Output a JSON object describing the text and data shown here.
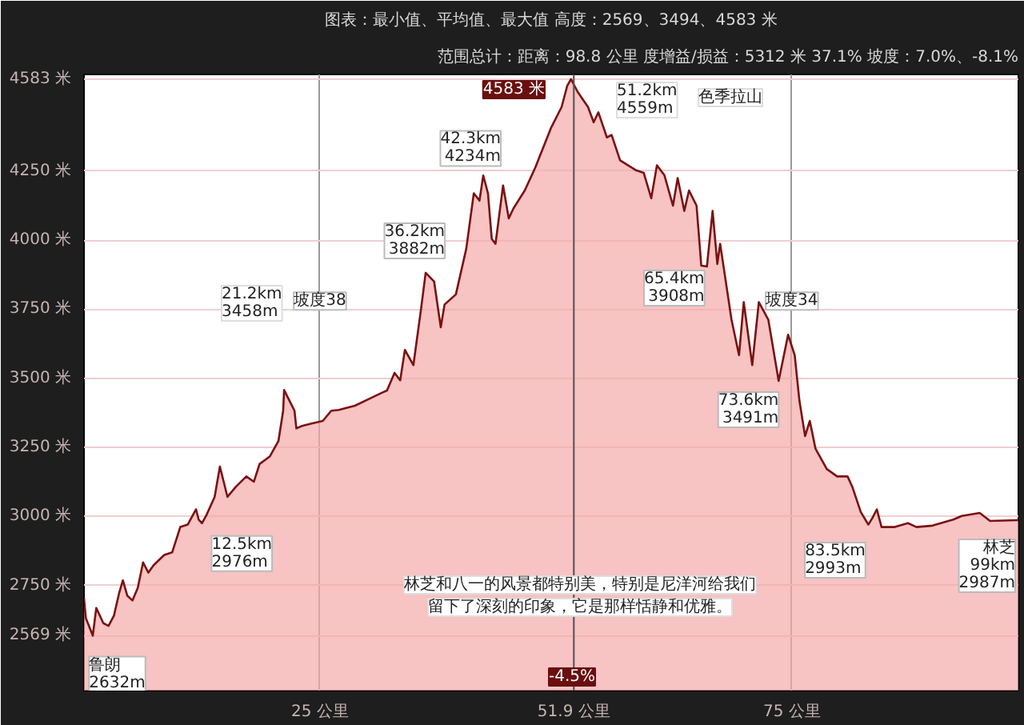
{
  "chart_data": {
    "type": "area",
    "title": "图表：最小值、平均值、最大值 高度：2569、3494、4583 米",
    "subtitle": "范围总计：距离：98.8 公里 度增益/损益：5312 米 37.1% 坡度：7.0%、-8.1%",
    "x": [
      0,
      0.2,
      0.93,
      1.3,
      2.05,
      2.6,
      3.17,
      3.73,
      4.12,
      4.58,
      5.13,
      5.7,
      6.26,
      6.82,
      7.38,
      8.5,
      9.34,
      10.2,
      11.0,
      11.87,
      12.15,
      12.5,
      13.0,
      13.84,
      14.4,
      15.2,
      16.1,
      17.2,
      18.0,
      18.6,
      19.7,
      20.6,
      21.1,
      21.2,
      22.3,
      22.5,
      23.1,
      24.2,
      25.3,
      26.2,
      27.0,
      28.7,
      30.4,
      31.5,
      32.1,
      32.9,
      33.5,
      34.0,
      34.9,
      35.7,
      36.2,
      37.1,
      37.8,
      38.2,
      39.4,
      40.5,
      41.3,
      41.9,
      42.3,
      42.8,
      43.2,
      43.6,
      44.4,
      45.0,
      45.5,
      46.7,
      47.8,
      49.5,
      50.6,
      51.2,
      51.6,
      52.3,
      53.4,
      54.0,
      54.5,
      55.4,
      55.9,
      56.8,
      58.5,
      59.3,
      60.1,
      60.7,
      61.5,
      62.4,
      62.9,
      63.6,
      64.1,
      64.9,
      65.4,
      66.0,
      66.6,
      67.1,
      67.4,
      68.6,
      69.4,
      69.9,
      70.8,
      71.5,
      72.5,
      73.6,
      74.6,
      75.3,
      75.8,
      76.4,
      76.9,
      77.5,
      78.7,
      79.8,
      80.9,
      81.4,
      82.3,
      83.1,
      83.5,
      84.0,
      84.5,
      85.9,
      87.3,
      88.2,
      89.9,
      92.1,
      93.0,
      94.9,
      96.0,
      99
    ],
    "series": [
      {
        "color": "#7a1212",
        "values": [
          2705,
          2632,
          2569,
          2669,
          2614,
          2604,
          2641,
          2724,
          2769,
          2714,
          2696,
          2742,
          2834,
          2797,
          2824,
          2861,
          2870,
          2962,
          2971,
          3026,
          2989,
          2976,
          3007,
          3071,
          3181,
          3071,
          3108,
          3145,
          3126,
          3190,
          3218,
          3273,
          3383,
          3458,
          3383,
          3319,
          3328,
          3337,
          3346,
          3383,
          3386,
          3401,
          3429,
          3447,
          3456,
          3520,
          3493,
          3603,
          3548,
          3749,
          3882,
          3850,
          3685,
          3767,
          3804,
          3969,
          4170,
          4143,
          4234,
          4170,
          4005,
          3987,
          4198,
          4079,
          4115,
          4180,
          4262,
          4408,
          4482,
          4559,
          4583,
          4537,
          4482,
          4427,
          4463,
          4372,
          4381,
          4289,
          4253,
          4244,
          4152,
          4271,
          4235,
          4125,
          4225,
          4106,
          4180,
          4125,
          3908,
          3905,
          4106,
          3914,
          3987,
          3713,
          3584,
          3776,
          3548,
          3776,
          3713,
          3491,
          3658,
          3584,
          3419,
          3291,
          3346,
          3246,
          3172,
          3145,
          3145,
          3108,
          3016,
          2971,
          2993,
          3026,
          2962,
          2962,
          2976,
          2962,
          2967,
          2989,
          3002,
          3013,
          2984,
          2987
        ]
      }
    ],
    "xlim": [
      0,
      99
    ],
    "ylim": [
      2370,
      4600
    ],
    "xticks": [
      {
        "value": 25,
        "label": "25 公里"
      },
      {
        "value": 51.9,
        "label": "51.9 公里"
      },
      {
        "value": 75,
        "label": "75 公里"
      }
    ],
    "yticks": [
      {
        "value": 2569,
        "label": "2569 米"
      },
      {
        "value": 2750,
        "label": "2750 米"
      },
      {
        "value": 3000,
        "label": "3000 米"
      },
      {
        "value": 3250,
        "label": "3250 米"
      },
      {
        "value": 3500,
        "label": "3500 米"
      },
      {
        "value": 3750,
        "label": "3750 米"
      },
      {
        "value": 4000,
        "label": "4000 米"
      },
      {
        "value": 4250,
        "label": "4250 米"
      },
      {
        "value": 4583,
        "label": "4583 米"
      }
    ],
    "grid": true,
    "ref_lines": [
      {
        "axis": "x",
        "value": 51.9,
        "color": "#555555"
      }
    ],
    "annotations": [
      {
        "text": "鲁朗\n2632m",
        "x": 0.2,
        "y": 2632
      },
      {
        "text": "12.5km\n2976m",
        "x": 12.5,
        "y": 2976
      },
      {
        "text": "坡度38",
        "x": 25,
        "y": 3780
      },
      {
        "text": "36.2km\n3882m",
        "x": 36.2,
        "y": 3882
      },
      {
        "text": "42.3km\n4234m",
        "x": 42.3,
        "y": 4234
      },
      {
        "text": "65.4km\n3908m",
        "x": 65.4,
        "y": 3908
      },
      {
        "text": "坡度34",
        "x": 75,
        "y": 3780
      },
      {
        "text": "73.6km\n3491m",
        "x": 73.6,
        "y": 3491
      },
      {
        "text": "83.5km\n2993m",
        "x": 83.5,
        "y": 2993
      },
      {
        "text": "林芝\n99km\n2987m",
        "x": 99,
        "y": 2987
      },
      "21.2km\n3458m",
      "4583 米",
      "51.2km\n4559m",
      "色季拉山",
      "-4.5%",
      "林芝和八一的风景都特别美，特别是尼洋河给我们",
      "留下了深刻的印象，它是那样恬静和优雅。"
    ]
  }
}
